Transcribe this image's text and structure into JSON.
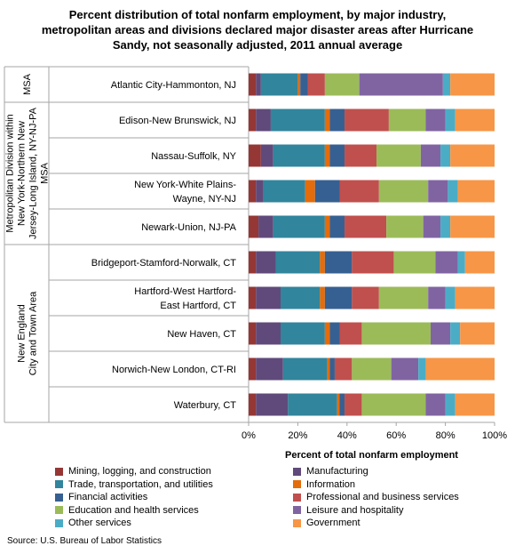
{
  "title_lines": [
    "Percent distribution of total nonfarm employment, by major industry,",
    "metropolitan areas and divisions declared major disaster areas after Hurricane",
    "Sandy, not seasonally adjusted, 2011 annual average"
  ],
  "source": "Source: U.S. Bureau of Labor Statistics",
  "groups": [
    {
      "label_lines": [
        "MSA"
      ],
      "rows": 1
    },
    {
      "label_lines": [
        "Metropolitan Division within",
        "New York-Northern New",
        "Jersey-Long Island, NY-NJ-PA",
        "MSA"
      ],
      "rows": 4
    },
    {
      "label_lines": [
        "New England",
        "City and Town Area"
      ],
      "rows": 5
    }
  ],
  "chart_data": {
    "type": "bar",
    "orientation": "horizontal",
    "stacked": true,
    "title": "Percent distribution of total nonfarm employment, by major industry, metropolitan areas and divisions declared major disaster areas after Hurricane Sandy, not seasonally adjusted, 2011 annual average",
    "xlabel": "Percent of total nonfarm employment",
    "xlim": [
      0,
      100
    ],
    "x_ticks": [
      "0%",
      "20%",
      "40%",
      "60%",
      "80%",
      "100%"
    ],
    "grid": false,
    "legend_position": "bottom",
    "categories": [
      [
        "Atlantic City-Hammonton, NJ"
      ],
      [
        "Edison-New Brunswick, NJ"
      ],
      [
        "Nassau-Suffolk, NY"
      ],
      [
        "New York-White Plains-",
        "Wayne, NY-NJ"
      ],
      [
        "Newark-Union, NJ-PA"
      ],
      [
        "Bridgeport-Stamford-Norwalk, CT"
      ],
      [
        "Hartford-West Hartford-",
        "East Hartford, CT"
      ],
      [
        "New Haven, CT"
      ],
      [
        "Norwich-New London, CT-RI"
      ],
      [
        "Waterbury, CT"
      ]
    ],
    "series": [
      {
        "name": "Mining, logging, and construction",
        "color": "#953735",
        "values": [
          3,
          3,
          5,
          3,
          4,
          3,
          3,
          3,
          3,
          3
        ]
      },
      {
        "name": "Manufacturing",
        "color": "#604a7b",
        "values": [
          2,
          6,
          5,
          3,
          6,
          8,
          10,
          10,
          11,
          13
        ]
      },
      {
        "name": "Trade, transportation, and utilities",
        "color": "#31859c",
        "values": [
          15,
          22,
          21,
          17,
          21,
          18,
          16,
          18,
          18,
          20
        ]
      },
      {
        "name": "Information",
        "color": "#e46c0a",
        "values": [
          1,
          2,
          2,
          4,
          2,
          2,
          2,
          2,
          1,
          1
        ]
      },
      {
        "name": "Financial activities",
        "color": "#376092",
        "values": [
          3,
          6,
          6,
          10,
          6,
          11,
          11,
          4,
          2,
          2
        ]
      },
      {
        "name": "Professional and business services",
        "color": "#c0504d",
        "values": [
          7,
          18,
          13,
          16,
          17,
          17,
          11,
          9,
          7,
          7
        ]
      },
      {
        "name": "Education and health services",
        "color": "#9bbb59",
        "values": [
          14,
          15,
          18,
          20,
          15,
          17,
          20,
          28,
          16,
          26
        ]
      },
      {
        "name": "Leisure and hospitality",
        "color": "#8064a2",
        "values": [
          34,
          8,
          8,
          8,
          7,
          9,
          7,
          8,
          11,
          8
        ]
      },
      {
        "name": "Other services",
        "color": "#4bacc6",
        "values": [
          3,
          4,
          4,
          4,
          4,
          3,
          4,
          4,
          3,
          4
        ]
      },
      {
        "name": "Government",
        "color": "#f79646",
        "values": [
          18,
          16,
          18,
          15,
          18,
          12,
          16,
          14,
          28,
          16
        ]
      }
    ]
  }
}
